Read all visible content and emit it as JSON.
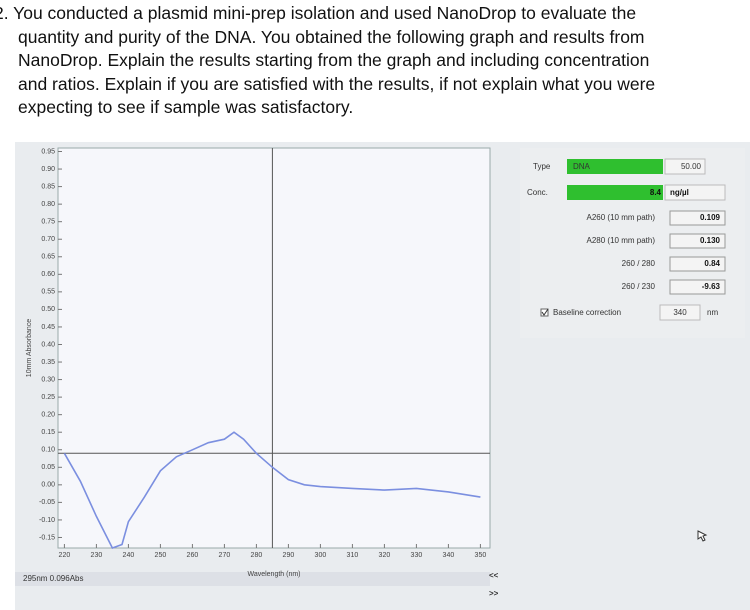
{
  "question": {
    "lines": [
      "2. You conducted a plasmid mini-prep isolation and used NanoDrop to evaluate the",
      "quantity and purity of the DNA. You obtained the following graph and results from",
      "NanoDrop. Explain the results starting from the graph and including concentration",
      "and ratios. Explain if you are satisfied with the results, if not explain what you were",
      "expecting to see if sample was satisfactory."
    ]
  },
  "graph": {
    "x_label": "Wavelength (nm)",
    "y_label": "10mm Absorbance",
    "xlim": [
      218,
      353
    ],
    "ylim": [
      -0.18,
      0.96
    ],
    "xticks": [
      220,
      230,
      240,
      250,
      260,
      270,
      280,
      290,
      300,
      310,
      320,
      330,
      340,
      350
    ],
    "yticks": [
      {
        "value": 0.95,
        "label": "0.95"
      },
      {
        "value": 0.9,
        "label": "0.90"
      },
      {
        "value": 0.85,
        "label": "0.85"
      },
      {
        "value": 0.8,
        "label": "0.80"
      },
      {
        "value": 0.75,
        "label": "0.75"
      },
      {
        "value": 0.7,
        "label": "0.70"
      },
      {
        "value": 0.65,
        "label": "0.65"
      },
      {
        "value": 0.6,
        "label": "0.60"
      },
      {
        "value": 0.55,
        "label": "0.55"
      },
      {
        "value": 0.5,
        "label": "0.50"
      },
      {
        "value": 0.45,
        "label": "0.45"
      },
      {
        "value": 0.4,
        "label": "0.40"
      },
      {
        "value": 0.35,
        "label": "0.35"
      },
      {
        "value": 0.3,
        "label": "0.30"
      },
      {
        "value": 0.25,
        "label": "0.25"
      },
      {
        "value": 0.2,
        "label": "0.20"
      },
      {
        "value": 0.15,
        "label": "0.15"
      },
      {
        "value": 0.1,
        "label": "0.10"
      },
      {
        "value": 0.05,
        "label": "0.05"
      },
      {
        "value": 0,
        "label": "0.00"
      },
      {
        "value": -0.05,
        "label": "-0.05"
      },
      {
        "value": -0.1,
        "label": "-0.10"
      },
      {
        "value": -0.15,
        "label": "-0.15"
      }
    ],
    "x": [
      220,
      225,
      230,
      235,
      238,
      240,
      245,
      250,
      255,
      260,
      265,
      270,
      273,
      276,
      280,
      285,
      290,
      295,
      300,
      310,
      320,
      330,
      340,
      350
    ],
    "y": [
      0.09,
      0.01,
      -0.09,
      -0.18,
      -0.17,
      -0.105,
      -0.035,
      0.04,
      0.08,
      0.1,
      0.12,
      0.13,
      0.15,
      0.13,
      0.09,
      0.05,
      0.015,
      0,
      -0.005,
      -0.01,
      -0.015,
      -0.01,
      -0.02,
      -0.035
    ],
    "color": "#7b8fe0",
    "cursor": {
      "x": 285,
      "y": 0.09
    },
    "status": "295nm 0.096Abs",
    "nav_back": "<<",
    "nav_forward": ">>"
  },
  "panel": {
    "type_label": "Type",
    "type_value": "DNA",
    "factor": "50.00",
    "conc_label": "Conc.",
    "conc_value": "8.4",
    "conc_unit": "ng/µl",
    "rows": [
      [
        "A260 (10 mm path)",
        "0.109"
      ],
      [
        "A280 (10 mm path)",
        "0.130"
      ],
      [
        "260 / 280",
        "0.84"
      ],
      [
        "260 / 230",
        "-9.63"
      ]
    ],
    "baseline_label": "Baseline correction",
    "baseline_value": "340",
    "baseline_unit": "nm"
  }
}
